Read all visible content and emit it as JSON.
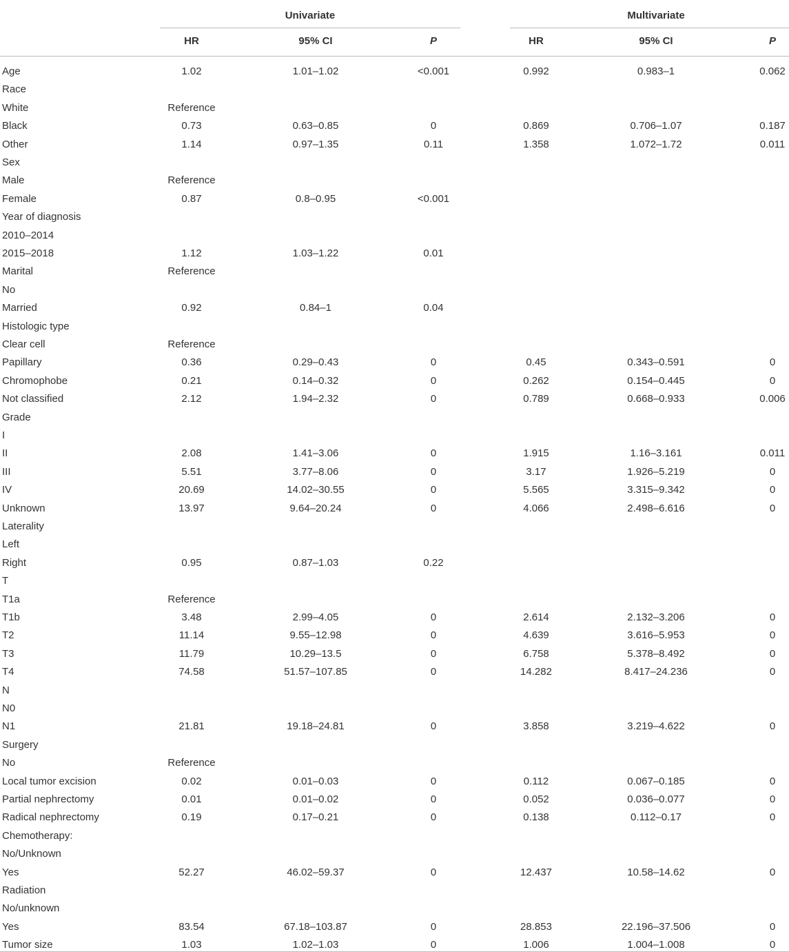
{
  "table": {
    "groups": [
      "Univariate",
      "Multivariate"
    ],
    "columns": [
      "HR",
      "95% CI",
      "P",
      "HR",
      "95% CI",
      "P"
    ],
    "rows": [
      [
        "Age",
        "1.02",
        "1.01–1.02",
        "<0.001",
        "0.992",
        "0.983–1",
        "0.062"
      ],
      [
        "Race"
      ],
      [
        "White",
        "Reference"
      ],
      [
        "Black",
        "0.73",
        "0.63–0.85",
        "0",
        "0.869",
        "0.706–1.07",
        "0.187"
      ],
      [
        "Other",
        "1.14",
        "0.97–1.35",
        "0.11",
        "1.358",
        "1.072–1.72",
        "0.011"
      ],
      [
        "Sex"
      ],
      [
        "Male",
        "Reference"
      ],
      [
        "Female",
        "0.87",
        "0.8–0.95",
        "<0.001"
      ],
      [
        "Year of diagnosis"
      ],
      [
        "2010–2014"
      ],
      [
        "2015–2018",
        "1.12",
        "1.03–1.22",
        "0.01"
      ],
      [
        "Marital",
        "Reference"
      ],
      [
        "No"
      ],
      [
        "Married",
        "0.92",
        "0.84–1",
        "0.04"
      ],
      [
        "Histologic type"
      ],
      [
        "Clear cell",
        "Reference"
      ],
      [
        "Papillary",
        "0.36",
        "0.29–0.43",
        "0",
        "0.45",
        "0.343–0.591",
        "0"
      ],
      [
        "Chromophobe",
        "0.21",
        "0.14–0.32",
        "0",
        "0.262",
        "0.154–0.445",
        "0"
      ],
      [
        "Not classified",
        "2.12",
        "1.94–2.32",
        "0",
        "0.789",
        "0.668–0.933",
        "0.006"
      ],
      [
        "Grade"
      ],
      [
        "I"
      ],
      [
        "II",
        "2.08",
        "1.41–3.06",
        "0",
        "1.915",
        "1.16–3.161",
        "0.011"
      ],
      [
        "III",
        "5.51",
        "3.77–8.06",
        "0",
        "3.17",
        "1.926–5.219",
        "0"
      ],
      [
        "IV",
        "20.69",
        "14.02–30.55",
        "0",
        "5.565",
        "3.315–9.342",
        "0"
      ],
      [
        "Unknown",
        "13.97",
        "9.64–20.24",
        "0",
        "4.066",
        "2.498–6.616",
        "0"
      ],
      [
        "Laterality"
      ],
      [
        "Left"
      ],
      [
        "Right",
        "0.95",
        "0.87–1.03",
        "0.22"
      ],
      [
        "T"
      ],
      [
        "T1a",
        "Reference"
      ],
      [
        "T1b",
        "3.48",
        "2.99–4.05",
        "0",
        "2.614",
        "2.132–3.206",
        "0"
      ],
      [
        "T2",
        "11.14",
        "9.55–12.98",
        "0",
        "4.639",
        "3.616–5.953",
        "0"
      ],
      [
        "T3",
        "11.79",
        "10.29–13.5",
        "0",
        "6.758",
        "5.378–8.492",
        "0"
      ],
      [
        "T4",
        "74.58",
        "51.57–107.85",
        "0",
        "14.282",
        "8.417–24.236",
        "0"
      ],
      [
        "N"
      ],
      [
        "N0"
      ],
      [
        "N1",
        "21.81",
        "19.18–24.81",
        "0",
        "3.858",
        "3.219–4.622",
        "0"
      ],
      [
        "Surgery"
      ],
      [
        "No",
        "Reference"
      ],
      [
        "Local tumor excision",
        "0.02",
        "0.01–0.03",
        "0",
        "0.112",
        "0.067–0.185",
        "0"
      ],
      [
        "Partial nephrectomy",
        "0.01",
        "0.01–0.02",
        "0",
        "0.052",
        "0.036–0.077",
        "0"
      ],
      [
        "Radical nephrectomy",
        "0.19",
        "0.17–0.21",
        "0",
        "0.138",
        "0.112–0.17",
        "0"
      ],
      [
        "Chemotherapy:"
      ],
      [
        "No/Unknown"
      ],
      [
        "Yes",
        "52.27",
        "46.02–59.37",
        "0",
        "12.437",
        "10.58–14.62",
        "0"
      ],
      [
        "Radiation"
      ],
      [
        "No/unknown"
      ],
      [
        "Yes",
        "83.54",
        "67.18–103.87",
        "0",
        "28.853",
        "22.196–37.506",
        "0"
      ],
      [
        "Tumor size",
        "1.03",
        "1.02–1.03",
        "0",
        "1.006",
        "1.004–1.008",
        "0"
      ]
    ]
  }
}
